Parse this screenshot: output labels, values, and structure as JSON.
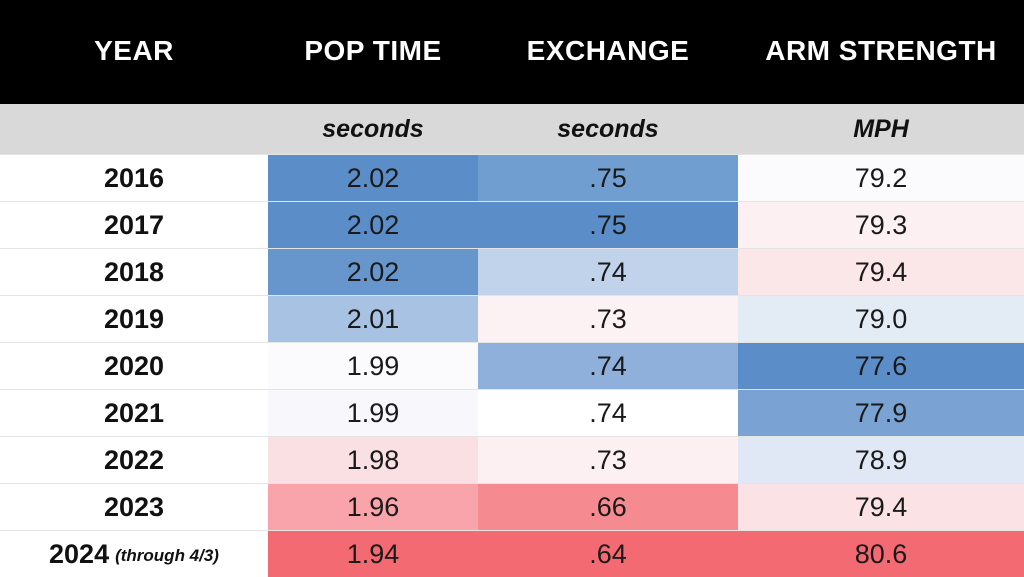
{
  "chart_data": {
    "type": "table",
    "columns": [
      "YEAR",
      "POP TIME",
      "EXCHANGE",
      "ARM STRENGTH"
    ],
    "units": [
      "",
      "seconds",
      "seconds",
      "MPH"
    ],
    "rows": [
      {
        "year": "2016",
        "note": "",
        "pop_time": "2.02",
        "exchange": ".75",
        "arm_strength": "79.2",
        "colors": [
          "#5b8ec8",
          "#719ed0",
          "#fbfbfd"
        ]
      },
      {
        "year": "2017",
        "note": "",
        "pop_time": "2.02",
        "exchange": ".75",
        "arm_strength": "79.3",
        "colors": [
          "#5b8ec8",
          "#5b8ec8",
          "#fdf0f2"
        ]
      },
      {
        "year": "2018",
        "note": "",
        "pop_time": "2.02",
        "exchange": ".74",
        "arm_strength": "79.4",
        "colors": [
          "#6696cc",
          "#c0d3ea",
          "#fbe6e8"
        ]
      },
      {
        "year": "2019",
        "note": "",
        "pop_time": "2.01",
        "exchange": ".73",
        "arm_strength": "79.0",
        "colors": [
          "#a8c2e3",
          "#fcf1f3",
          "#e3ebf5"
        ]
      },
      {
        "year": "2020",
        "note": "",
        "pop_time": "1.99",
        "exchange": ".74",
        "arm_strength": "77.6",
        "colors": [
          "#fbfbfd",
          "#8eb0da",
          "#5b8ec8"
        ]
      },
      {
        "year": "2021",
        "note": "",
        "pop_time": "1.99",
        "exchange": ".74",
        "arm_strength": "77.9",
        "colors": [
          "#f8f8fc",
          "#ffffff",
          "#7aa3d4"
        ]
      },
      {
        "year": "2022",
        "note": "",
        "pop_time": "1.98",
        "exchange": ".73",
        "arm_strength": "78.9",
        "colors": [
          "#fbe0e3",
          "#fcf0f2",
          "#dfe8f4"
        ]
      },
      {
        "year": "2023",
        "note": "",
        "pop_time": "1.96",
        "exchange": ".66",
        "arm_strength": "79.4",
        "colors": [
          "#f8a4aa",
          "#f68a91",
          "#fbe3e5"
        ]
      },
      {
        "year": "2024",
        "note": "(through 4/3)",
        "pop_time": "1.94",
        "exchange": ".64",
        "arm_strength": "80.6",
        "colors": [
          "#f46a72",
          "#f46a72",
          "#f46a72"
        ]
      }
    ]
  }
}
